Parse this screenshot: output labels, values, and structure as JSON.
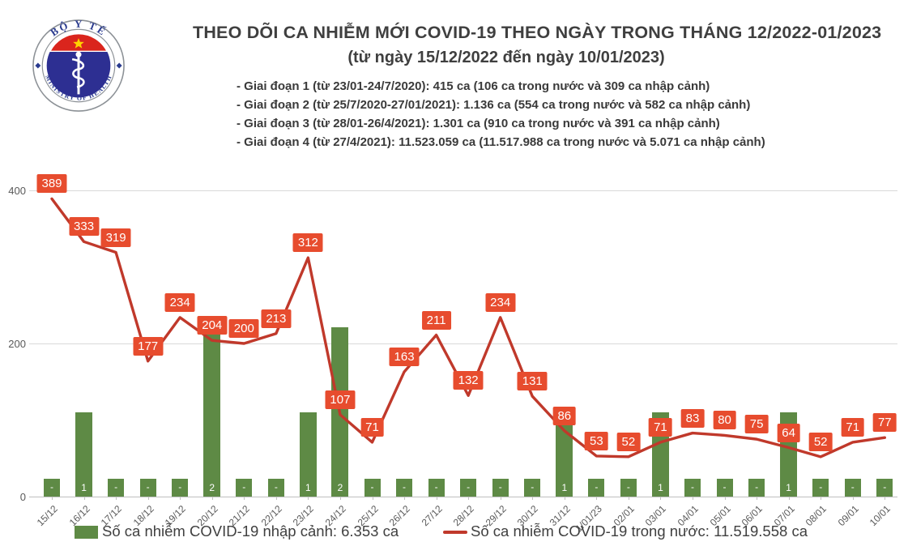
{
  "header": {
    "title": "THEO DÕI CA NHIỄM MỚI COVID-19 THEO NGÀY TRONG THÁNG 12/2022-01/2023",
    "subtitle": "(từ ngày 15/12/2022 đến ngày 10/01/2023)",
    "phases": [
      "- Giai đoạn 1 (từ 23/01-24/7/2020): 415 ca (106 ca trong nước và 309 ca nhập cảnh)",
      "- Giai đoạn 2 (từ 25/7/2020-27/01/2021): 1.136 ca (554 ca trong nước và 582 ca nhập cảnh)",
      "- Giai đoạn 3 (từ 28/01-26/4/2021): 1.301 ca (910 ca trong nước và 391 ca nhập cảnh)",
      "- Giai đoạn 4 (từ 27/4/2021): 11.523.059 ca (11.517.988 ca trong nước và 5.071 ca nhập cảnh)"
    ],
    "logo": {
      "top_text": "BỘ Y TẾ",
      "bottom_text": "MINISTRY OF HEALTH"
    }
  },
  "chart_data": {
    "type": "bar+line",
    "title": "Theo dõi ca nhiễm mới COVID-19 theo ngày trong tháng 12/2022-01/2023",
    "categories": [
      "15/12",
      "16/12",
      "17/12",
      "18/12",
      "19/12",
      "20/12",
      "21/12",
      "22/12",
      "23/12",
      "24/12",
      "25/12",
      "26/12",
      "27/12",
      "28/12",
      "29/12",
      "30/12",
      "31/12",
      "1/01/23",
      "02/01",
      "03/01",
      "04/01",
      "05/01",
      "06/01",
      "07/01",
      "08/01",
      "09/01",
      "10/01"
    ],
    "series": [
      {
        "name": "Số ca nhiễm COVID-19 nhập cảnh",
        "type": "bar",
        "color": "#5e8a45",
        "values": [
          0,
          1,
          0,
          0,
          0,
          2,
          0,
          0,
          1,
          2,
          0,
          0,
          0,
          0,
          0,
          0,
          1,
          0,
          0,
          1,
          0,
          0,
          0,
          1,
          0,
          0,
          0
        ],
        "labels": [
          "-",
          "1",
          "-",
          "-",
          "-",
          "2",
          "-",
          "-",
          "1",
          "2",
          "-",
          "-",
          "-",
          "-",
          "-",
          "-",
          "1",
          "-",
          "-",
          "1",
          "-",
          "-",
          "-",
          "1",
          "-",
          "-",
          "-"
        ]
      },
      {
        "name": "Số ca nhiễm COVID-19 trong nước",
        "type": "line",
        "color": "#c0392b",
        "label_bg": "#e74c2e",
        "values": [
          389,
          333,
          319,
          177,
          234,
          204,
          200,
          213,
          312,
          107,
          71,
          163,
          211,
          132,
          234,
          131,
          86,
          53,
          52,
          71,
          83,
          80,
          75,
          64,
          52,
          71,
          77
        ]
      }
    ],
    "y_ticks": [
      "0",
      "200",
      "400"
    ],
    "y_tick_values": [
      0,
      200,
      400
    ],
    "ylim": [
      0,
      440
    ],
    "grid": "horizontal",
    "legend_position": "bottom",
    "legend": [
      "Số ca nhiễm COVID-19 nhập cảnh: 6.353 ca",
      "Số ca nhiễm COVID-19 trong nước: 11.519.558 ca"
    ]
  }
}
